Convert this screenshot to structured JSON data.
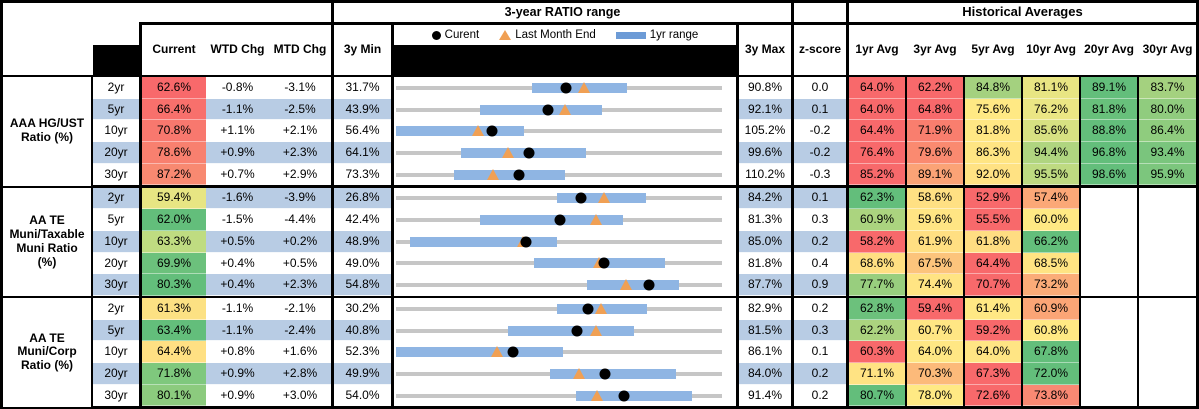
{
  "palette": {
    "stripe_blue": "#B8CCE4",
    "bar_blue": "#8FB5E3",
    "track_gray": "#C6C6C6",
    "triangle_orange": "#F0A054",
    "dot_black": "#000000"
  },
  "headers": {
    "chart_title": "3-year RATIO range",
    "historical_title": "Historical Averages",
    "current": "Current",
    "wtd": "WTD Chg",
    "mtd": "MTD Chg",
    "min3y": "3y Min",
    "max3y": "3y Max",
    "zscore": "z-score",
    "avg_cols": [
      "1yr Avg",
      "3yr Avg",
      "5yr Avg",
      "10yr Avg",
      "20yr Avg",
      "30yr Avg"
    ],
    "legend": {
      "current": "Curent",
      "last_month": "Last Month End",
      "range": "1yr range"
    }
  },
  "chart_data": {
    "type": "table",
    "note": "Each row embeds a bullet/range chart: gray track spans 3y Min..3y Max, blue bar = 1yr range, black dot = Current, orange triangle = Last Month End. Bar and triangle values estimated from pixels.",
    "sections": [
      {
        "label_lines": [
          "AAA HG/UST",
          "Ratio (%)"
        ],
        "rows": [
          {
            "tenor": "2yr",
            "current": "62.6%",
            "current_bg": "#F8696B",
            "wtd": "-0.8%",
            "mtd": "-3.1%",
            "min": "31.7%",
            "max": "90.8%",
            "z": "0.0",
            "chart": {
              "min": 31.7,
              "max": 90.8,
              "bar_lo": 56.4,
              "bar_hi": 73.6,
              "cur": 62.6,
              "lme": 65.7
            },
            "avgs": [
              {
                "v": "64.0%",
                "bg": "#F8696B"
              },
              {
                "v": "62.2%",
                "bg": "#F8696B"
              },
              {
                "v": "84.8%",
                "bg": "#A4D17F"
              },
              {
                "v": "81.1%",
                "bg": "#E8E583"
              },
              {
                "v": "89.1%",
                "bg": "#63BE7B"
              },
              {
                "v": "83.7%",
                "bg": "#A4D17F"
              }
            ]
          },
          {
            "tenor": "5yr",
            "current": "66.4%",
            "current_bg": "#F8706C",
            "wtd": "-1.1%",
            "mtd": "-2.5%",
            "min": "43.9%",
            "max": "92.1%",
            "z": "0.1",
            "chart": {
              "min": 43.9,
              "max": 92.1,
              "bar_lo": 56.3,
              "bar_hi": 74.4,
              "cur": 66.4,
              "lme": 68.9
            },
            "avgs": [
              {
                "v": "64.0%",
                "bg": "#F8696B"
              },
              {
                "v": "64.8%",
                "bg": "#F8696B"
              },
              {
                "v": "75.6%",
                "bg": "#FFE984"
              },
              {
                "v": "76.2%",
                "bg": "#EBE684"
              },
              {
                "v": "81.8%",
                "bg": "#68C07B"
              },
              {
                "v": "80.0%",
                "bg": "#90CC7E"
              }
            ]
          },
          {
            "tenor": "10yr",
            "current": "70.8%",
            "current_bg": "#F8786E",
            "wtd": "+1.1%",
            "mtd": "+2.1%",
            "min": "56.4%",
            "max": "105.2%",
            "z": "-0.2",
            "chart": {
              "min": 56.4,
              "max": 105.2,
              "bar_lo": 56.4,
              "bar_hi": 75.5,
              "cur": 70.8,
              "lme": 68.7
            },
            "avgs": [
              {
                "v": "64.4%",
                "bg": "#F8696B"
              },
              {
                "v": "71.9%",
                "bg": "#F97E6E"
              },
              {
                "v": "81.8%",
                "bg": "#FFE784"
              },
              {
                "v": "85.6%",
                "bg": "#D7E182"
              },
              {
                "v": "88.8%",
                "bg": "#63BE7B"
              },
              {
                "v": "86.4%",
                "bg": "#8FCC7E"
              }
            ]
          },
          {
            "tenor": "20yr",
            "current": "78.6%",
            "current_bg": "#F8806F",
            "wtd": "+0.9%",
            "mtd": "+2.3%",
            "min": "64.1%",
            "max": "99.6%",
            "z": "-0.2",
            "chart": {
              "min": 64.1,
              "max": 99.6,
              "bar_lo": 71.2,
              "bar_hi": 84.8,
              "cur": 78.6,
              "lme": 76.3
            },
            "avgs": [
              {
                "v": "76.4%",
                "bg": "#F8696B"
              },
              {
                "v": "79.6%",
                "bg": "#FA8A70"
              },
              {
                "v": "86.3%",
                "bg": "#FFE583"
              },
              {
                "v": "94.4%",
                "bg": "#B0D580"
              },
              {
                "v": "96.8%",
                "bg": "#63BE7B"
              },
              {
                "v": "93.4%",
                "bg": "#7AC57D"
              }
            ]
          },
          {
            "tenor": "30yr",
            "current": "87.2%",
            "current_bg": "#F88971",
            "wtd": "+0.7%",
            "mtd": "+2.9%",
            "min": "73.3%",
            "max": "110.2%",
            "z": "-0.3",
            "chart": {
              "min": 73.3,
              "max": 110.2,
              "bar_lo": 79.9,
              "bar_hi": 92.4,
              "cur": 87.2,
              "lme": 84.3
            },
            "avgs": [
              {
                "v": "85.2%",
                "bg": "#F8696B"
              },
              {
                "v": "89.1%",
                "bg": "#FBA376"
              },
              {
                "v": "92.0%",
                "bg": "#FFE283"
              },
              {
                "v": "95.5%",
                "bg": "#BEDA81"
              },
              {
                "v": "98.6%",
                "bg": "#63BE7B"
              },
              {
                "v": "95.9%",
                "bg": "#7CC67D"
              }
            ]
          }
        ]
      },
      {
        "label_lines": [
          "AA TE",
          "Muni/Taxable",
          "Muni Ratio",
          "(%)"
        ],
        "rows": [
          {
            "tenor": "2yr",
            "current": "59.4%",
            "current_bg": "#E7E583",
            "wtd": "-1.6%",
            "mtd": "-3.9%",
            "min": "26.8%",
            "max": "84.2%",
            "z": "0.1",
            "chart": {
              "min": 26.8,
              "max": 84.2,
              "bar_lo": 55.2,
              "bar_hi": 70.8,
              "cur": 59.4,
              "lme": 63.5
            },
            "avgs": [
              {
                "v": "62.3%",
                "bg": "#63BE7B"
              },
              {
                "v": "58.6%",
                "bg": "#FFE083"
              },
              {
                "v": "52.9%",
                "bg": "#F8696B"
              },
              {
                "v": "57.4%",
                "bg": "#FBA877"
              },
              null,
              null
            ]
          },
          {
            "tenor": "5yr",
            "current": "62.0%",
            "current_bg": "#63BE7B",
            "wtd": "-1.5%",
            "mtd": "-4.4%",
            "min": "42.4%",
            "max": "81.3%",
            "z": "0.3",
            "chart": {
              "min": 42.4,
              "max": 81.3,
              "bar_lo": 52.4,
              "bar_hi": 69.5,
              "cur": 62.0,
              "lme": 66.3
            },
            "avgs": [
              {
                "v": "60.9%",
                "bg": "#ABD47F"
              },
              {
                "v": "59.6%",
                "bg": "#FFE584"
              },
              {
                "v": "55.5%",
                "bg": "#F8696B"
              },
              {
                "v": "60.0%",
                "bg": "#FFE984"
              },
              null,
              null
            ]
          },
          {
            "tenor": "10yr",
            "current": "63.3%",
            "current_bg": "#BFDC81",
            "wtd": "+0.5%",
            "mtd": "+0.2%",
            "min": "48.9%",
            "max": "85.0%",
            "z": "0.2",
            "chart": {
              "min": 48.9,
              "max": 85.0,
              "bar_lo": 50.4,
              "bar_hi": 66.7,
              "cur": 63.3,
              "lme": 63.0
            },
            "avgs": [
              {
                "v": "58.2%",
                "bg": "#F8696B"
              },
              {
                "v": "61.9%",
                "bg": "#FFDF82"
              },
              {
                "v": "61.8%",
                "bg": "#FFDD82"
              },
              {
                "v": "66.2%",
                "bg": "#63BE7B"
              },
              null,
              null
            ]
          },
          {
            "tenor": "20yr",
            "current": "69.9%",
            "current_bg": "#6CC17C",
            "wtd": "+0.4%",
            "mtd": "+0.5%",
            "min": "49.0%",
            "max": "81.8%",
            "z": "0.4",
            "chart": {
              "min": 49.0,
              "max": 81.8,
              "bar_lo": 62.9,
              "bar_hi": 76.1,
              "cur": 69.9,
              "lme": 69.4
            },
            "avgs": [
              {
                "v": "68.6%",
                "bg": "#FFDF82"
              },
              {
                "v": "67.5%",
                "bg": "#FCC47C"
              },
              {
                "v": "64.4%",
                "bg": "#F8696B"
              },
              {
                "v": "68.5%",
                "bg": "#FFE483"
              },
              null,
              null
            ]
          },
          {
            "tenor": "30yr",
            "current": "80.3%",
            "current_bg": "#63BE7B",
            "wtd": "+0.4%",
            "mtd": "+2.3%",
            "min": "54.8%",
            "max": "87.7%",
            "z": "0.9",
            "chart": {
              "min": 54.8,
              "max": 87.7,
              "bar_lo": 74.1,
              "bar_hi": 83.4,
              "cur": 80.3,
              "lme": 78.0
            },
            "avgs": [
              {
                "v": "77.7%",
                "bg": "#98CE7E"
              },
              {
                "v": "74.4%",
                "bg": "#FFE483"
              },
              {
                "v": "70.7%",
                "bg": "#F8696B"
              },
              {
                "v": "73.2%",
                "bg": "#FBAC78"
              },
              null,
              null
            ]
          }
        ]
      },
      {
        "label_lines": [
          "AA TE",
          "Muni/Corp",
          "Ratio (%)"
        ],
        "rows": [
          {
            "tenor": "2yr",
            "current": "61.3%",
            "current_bg": "#FCE183",
            "wtd": "-1.1%",
            "mtd": "-2.1%",
            "min": "30.2%",
            "max": "82.9%",
            "z": "0.2",
            "chart": {
              "min": 30.2,
              "max": 82.9,
              "bar_lo": 56.2,
              "bar_hi": 70.8,
              "cur": 61.3,
              "lme": 63.4
            },
            "avgs": [
              {
                "v": "62.8%",
                "bg": "#6CC17C"
              },
              {
                "v": "59.4%",
                "bg": "#F8696B"
              },
              {
                "v": "61.4%",
                "bg": "#FFE884"
              },
              {
                "v": "60.9%",
                "bg": "#FBA576"
              },
              null,
              null
            ]
          },
          {
            "tenor": "5yr",
            "current": "63.4%",
            "current_bg": "#63BE7B",
            "wtd": "-1.1%",
            "mtd": "-2.4%",
            "min": "40.8%",
            "max": "81.5%",
            "z": "0.3",
            "chart": {
              "min": 40.8,
              "max": 81.5,
              "bar_lo": 54.8,
              "bar_hi": 70.5,
              "cur": 63.4,
              "lme": 65.8
            },
            "avgs": [
              {
                "v": "62.2%",
                "bg": "#ABD37F"
              },
              {
                "v": "60.7%",
                "bg": "#FFE684"
              },
              {
                "v": "59.2%",
                "bg": "#F8696B"
              },
              {
                "v": "60.8%",
                "bg": "#FFE984"
              },
              null,
              null
            ]
          },
          {
            "tenor": "10yr",
            "current": "64.4%",
            "current_bg": "#FFE083",
            "wtd": "+0.8%",
            "mtd": "+1.6%",
            "min": "52.3%",
            "max": "86.1%",
            "z": "0.1",
            "chart": {
              "min": 52.3,
              "max": 86.1,
              "bar_lo": 52.3,
              "bar_hi": 69.6,
              "cur": 64.4,
              "lme": 62.8
            },
            "avgs": [
              {
                "v": "60.3%",
                "bg": "#F8696B"
              },
              {
                "v": "64.0%",
                "bg": "#FFE784"
              },
              {
                "v": "64.0%",
                "bg": "#FFE584"
              },
              {
                "v": "67.8%",
                "bg": "#63BE7B"
              },
              null,
              null
            ]
          },
          {
            "tenor": "20yr",
            "current": "71.8%",
            "current_bg": "#7FC87D",
            "wtd": "+0.9%",
            "mtd": "+2.8%",
            "min": "49.9%",
            "max": "84.0%",
            "z": "0.2",
            "chart": {
              "min": 49.9,
              "max": 84.0,
              "bar_lo": 66.0,
              "bar_hi": 79.2,
              "cur": 71.8,
              "lme": 69.0
            },
            "avgs": [
              {
                "v": "71.1%",
                "bg": "#FFE383"
              },
              {
                "v": "70.3%",
                "bg": "#FCBA7A"
              },
              {
                "v": "67.3%",
                "bg": "#F8696B"
              },
              {
                "v": "72.0%",
                "bg": "#63BE7B"
              },
              null,
              null
            ]
          },
          {
            "tenor": "30yr",
            "current": "80.1%",
            "current_bg": "#8CCB7E",
            "wtd": "+0.9%",
            "mtd": "+3.0%",
            "min": "54.0%",
            "max": "91.4%",
            "z": "0.2",
            "chart": {
              "min": 54.0,
              "max": 91.4,
              "bar_lo": 74.6,
              "bar_hi": 88.0,
              "cur": 80.1,
              "lme": 77.1
            },
            "avgs": [
              {
                "v": "80.7%",
                "bg": "#63BE7B"
              },
              {
                "v": "78.0%",
                "bg": "#FFE984"
              },
              {
                "v": "72.6%",
                "bg": "#F8696B"
              },
              {
                "v": "73.8%",
                "bg": "#F98973"
              },
              null,
              null
            ]
          }
        ]
      }
    ]
  }
}
